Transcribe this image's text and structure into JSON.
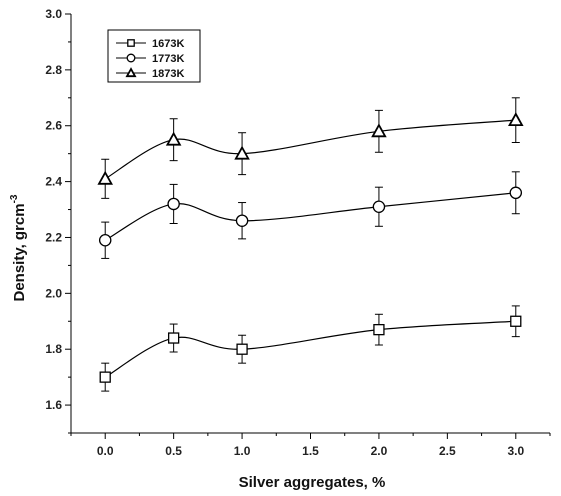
{
  "chart_data": {
    "type": "line",
    "title": "",
    "xlabel": "Silver aggregates, %",
    "ylabel": "Density, grcm",
    "ylabel_superscript": "-3",
    "xlim": [
      -0.25,
      3.25
    ],
    "ylim": [
      1.5,
      3.0
    ],
    "x_ticks": [
      0.0,
      0.5,
      1.0,
      1.5,
      2.0,
      2.5,
      3.0
    ],
    "x_tick_labels": [
      "0.0",
      "0.5",
      "1.0",
      "1.5",
      "2.0",
      "2.5",
      "3.0"
    ],
    "y_ticks": [
      1.6,
      1.8,
      2.0,
      2.2,
      2.4,
      2.6,
      2.8,
      3.0
    ],
    "y_tick_labels": [
      "1.6",
      "1.8",
      "2.0",
      "2.2",
      "2.4",
      "2.6",
      "2.8",
      "3.0"
    ],
    "grid": false,
    "legend_position": "top-left",
    "x": [
      0.0,
      0.5,
      1.0,
      2.0,
      3.0
    ],
    "series": [
      {
        "name": "1673K",
        "marker": "square",
        "values": [
          1.7,
          1.84,
          1.8,
          1.87,
          1.9
        ],
        "errors": [
          0.05,
          0.05,
          0.05,
          0.055,
          0.055
        ]
      },
      {
        "name": "1773K",
        "marker": "circle",
        "values": [
          2.19,
          2.32,
          2.26,
          2.31,
          2.36
        ],
        "errors": [
          0.065,
          0.07,
          0.065,
          0.07,
          0.075
        ]
      },
      {
        "name": "1873K",
        "marker": "triangle",
        "values": [
          2.41,
          2.55,
          2.5,
          2.58,
          2.62
        ],
        "errors": [
          0.07,
          0.075,
          0.075,
          0.075,
          0.08
        ]
      }
    ]
  }
}
